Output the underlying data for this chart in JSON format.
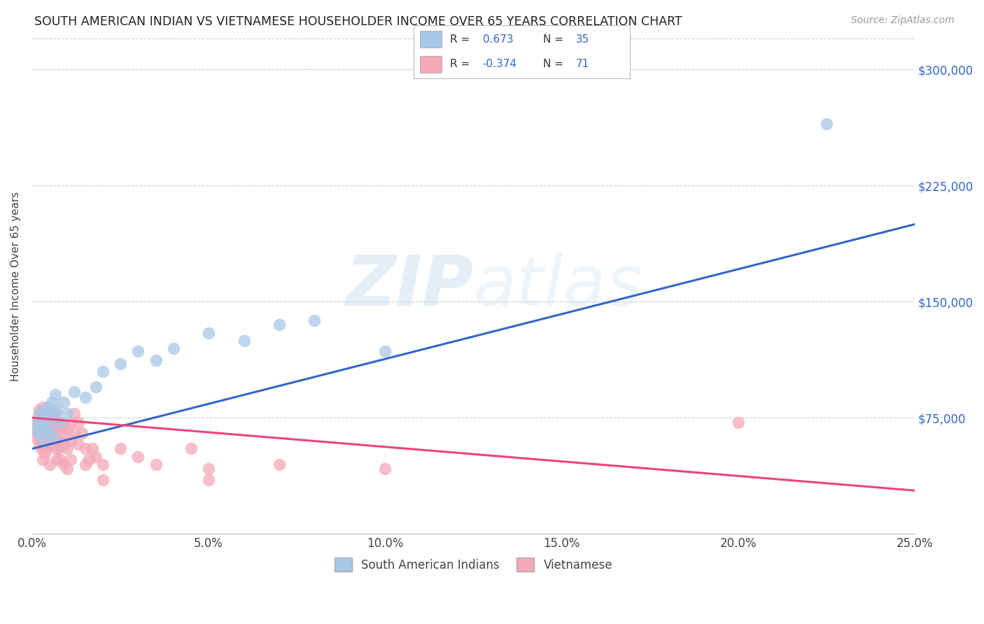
{
  "title": "SOUTH AMERICAN INDIAN VS VIETNAMESE HOUSEHOLDER INCOME OVER 65 YEARS CORRELATION CHART",
  "source": "Source: ZipAtlas.com",
  "ylabel": "Householder Income Over 65 years",
  "xlabel_vals": [
    0.0,
    5.0,
    10.0,
    15.0,
    20.0,
    25.0
  ],
  "ytick_labels": [
    "$75,000",
    "$150,000",
    "$225,000",
    "$300,000"
  ],
  "ytick_vals": [
    75000,
    150000,
    225000,
    300000
  ],
  "xlim": [
    0.0,
    25.0
  ],
  "ylim": [
    0,
    320000
  ],
  "R_blue": 0.673,
  "N_blue": 35,
  "R_pink": -0.374,
  "N_pink": 71,
  "blue_color": "#a8c8e8",
  "pink_color": "#f4a8b8",
  "blue_line_color": "#3366cc",
  "pink_line_color": "#ee4477",
  "blue_line_text_color": "#3366cc",
  "legend_label_blue": "South American Indians",
  "legend_label_pink": "Vietnamese",
  "watermark_zip": "ZIP",
  "watermark_atlas": "atlas",
  "blue_scatter": [
    [
      0.1,
      68000
    ],
    [
      0.15,
      72000
    ],
    [
      0.2,
      65000
    ],
    [
      0.2,
      78000
    ],
    [
      0.25,
      70000
    ],
    [
      0.3,
      75000
    ],
    [
      0.3,
      62000
    ],
    [
      0.35,
      80000
    ],
    [
      0.4,
      72000
    ],
    [
      0.4,
      68000
    ],
    [
      0.45,
      82000
    ],
    [
      0.5,
      78000
    ],
    [
      0.5,
      65000
    ],
    [
      0.55,
      85000
    ],
    [
      0.6,
      75000
    ],
    [
      0.6,
      62000
    ],
    [
      0.65,
      90000
    ],
    [
      0.7,
      80000
    ],
    [
      0.8,
      72000
    ],
    [
      0.9,
      85000
    ],
    [
      1.0,
      78000
    ],
    [
      1.2,
      92000
    ],
    [
      1.5,
      88000
    ],
    [
      1.8,
      95000
    ],
    [
      2.0,
      105000
    ],
    [
      2.5,
      110000
    ],
    [
      3.0,
      118000
    ],
    [
      3.5,
      112000
    ],
    [
      4.0,
      120000
    ],
    [
      5.0,
      130000
    ],
    [
      6.0,
      125000
    ],
    [
      7.0,
      135000
    ],
    [
      8.0,
      138000
    ],
    [
      10.0,
      118000
    ],
    [
      22.5,
      265000
    ]
  ],
  "pink_scatter": [
    [
      0.1,
      70000
    ],
    [
      0.1,
      62000
    ],
    [
      0.15,
      75000
    ],
    [
      0.15,
      65000
    ],
    [
      0.2,
      80000
    ],
    [
      0.2,
      72000
    ],
    [
      0.2,
      58000
    ],
    [
      0.25,
      78000
    ],
    [
      0.25,
      68000
    ],
    [
      0.25,
      55000
    ],
    [
      0.3,
      82000
    ],
    [
      0.3,
      72000
    ],
    [
      0.3,
      60000
    ],
    [
      0.3,
      48000
    ],
    [
      0.35,
      75000
    ],
    [
      0.35,
      65000
    ],
    [
      0.35,
      52000
    ],
    [
      0.4,
      78000
    ],
    [
      0.4,
      68000
    ],
    [
      0.4,
      55000
    ],
    [
      0.45,
      72000
    ],
    [
      0.45,
      62000
    ],
    [
      0.5,
      80000
    ],
    [
      0.5,
      70000
    ],
    [
      0.5,
      58000
    ],
    [
      0.5,
      45000
    ],
    [
      0.55,
      75000
    ],
    [
      0.55,
      65000
    ],
    [
      0.6,
      72000
    ],
    [
      0.6,
      60000
    ],
    [
      0.65,
      78000
    ],
    [
      0.65,
      55000
    ],
    [
      0.7,
      72000
    ],
    [
      0.7,
      60000
    ],
    [
      0.7,
      48000
    ],
    [
      0.75,
      68000
    ],
    [
      0.75,
      55000
    ],
    [
      0.8,
      72000
    ],
    [
      0.8,
      60000
    ],
    [
      0.8,
      48000
    ],
    [
      0.85,
      65000
    ],
    [
      0.9,
      70000
    ],
    [
      0.9,
      58000
    ],
    [
      0.9,
      45000
    ],
    [
      1.0,
      68000
    ],
    [
      1.0,
      55000
    ],
    [
      1.0,
      42000
    ],
    [
      1.1,
      72000
    ],
    [
      1.1,
      60000
    ],
    [
      1.1,
      48000
    ],
    [
      1.2,
      78000
    ],
    [
      1.2,
      65000
    ],
    [
      1.3,
      72000
    ],
    [
      1.3,
      58000
    ],
    [
      1.4,
      65000
    ],
    [
      1.5,
      55000
    ],
    [
      1.5,
      45000
    ],
    [
      1.6,
      48000
    ],
    [
      1.7,
      55000
    ],
    [
      1.8,
      50000
    ],
    [
      2.0,
      45000
    ],
    [
      2.0,
      35000
    ],
    [
      2.5,
      55000
    ],
    [
      3.0,
      50000
    ],
    [
      3.5,
      45000
    ],
    [
      4.5,
      55000
    ],
    [
      5.0,
      42000
    ],
    [
      5.0,
      35000
    ],
    [
      7.0,
      45000
    ],
    [
      10.0,
      42000
    ],
    [
      20.0,
      72000
    ]
  ],
  "blue_line_x0": 0.0,
  "blue_line_y0": 55000,
  "blue_line_x1": 25.0,
  "blue_line_y1": 200000,
  "pink_line_x0": 0.0,
  "pink_line_y0": 75000,
  "pink_line_x1": 25.0,
  "pink_line_y1": 28000
}
